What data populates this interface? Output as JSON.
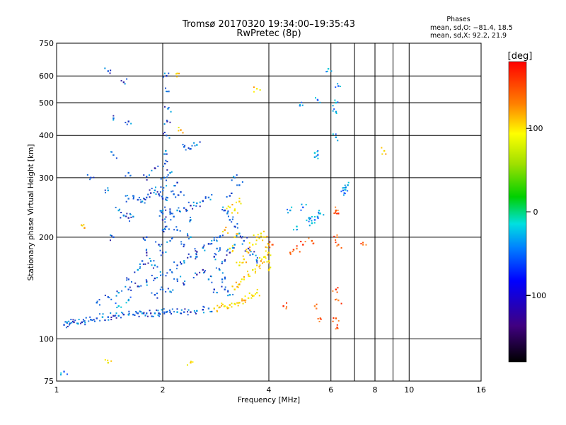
{
  "chart_data": {
    "type": "scatter",
    "title": "Tromsø 20170320 19:34:00–19:35:43",
    "subtitle": "RwPretec (8p)",
    "xlabel": "Frequency [MHz]",
    "ylabel": "Stationary phase Virtual Height [km]",
    "xscale": "log",
    "yscale": "log",
    "xlim": [
      1,
      16
    ],
    "ylim": [
      75,
      750
    ],
    "x_ticks": [
      1,
      2,
      4,
      6,
      8,
      10,
      16
    ],
    "x_grid": [
      1,
      2,
      4,
      6,
      7,
      8,
      9,
      10,
      16
    ],
    "y_ticks": [
      75,
      100,
      200,
      300,
      400,
      500,
      600,
      750
    ],
    "grid": true,
    "stats": {
      "heading": "Phases",
      "line_o": "mean, sd,O: −81.4, 18.5",
      "line_x": "mean, sd,X:  92.2, 21.9"
    },
    "colorbar": {
      "label": "[deg]",
      "range": [
        -180,
        180
      ],
      "ticks": [
        -100,
        0,
        100
      ],
      "placement": "right"
    },
    "series": [
      {
        "points": [
          [
            1.05,
            110
          ],
          [
            1.07,
            112
          ],
          [
            1.09,
            111
          ],
          [
            1.12,
            112
          ],
          [
            1.15,
            111
          ],
          [
            1.18,
            112
          ],
          [
            1.2,
            113
          ],
          [
            1.25,
            114
          ],
          [
            1.3,
            115
          ],
          [
            1.35,
            116
          ],
          [
            1.4,
            116
          ],
          [
            1.45,
            117
          ],
          [
            1.5,
            117
          ],
          [
            1.55,
            118
          ],
          [
            1.6,
            118
          ],
          [
            1.65,
            118
          ],
          [
            1.7,
            119
          ],
          [
            1.75,
            119
          ],
          [
            1.8,
            119
          ],
          [
            1.85,
            119
          ],
          [
            1.9,
            119
          ],
          [
            1.95,
            119
          ],
          [
            2.0,
            120
          ],
          [
            2.05,
            120
          ],
          [
            2.1,
            120
          ],
          [
            2.2,
            120
          ],
          [
            2.3,
            120
          ],
          [
            2.4,
            120
          ],
          [
            2.5,
            121
          ],
          [
            2.6,
            122
          ],
          [
            2.7,
            123
          ],
          [
            1.3,
            128
          ],
          [
            1.4,
            133
          ],
          [
            1.5,
            137
          ],
          [
            1.6,
            140
          ],
          [
            1.7,
            143
          ],
          [
            1.8,
            147
          ],
          [
            1.9,
            151
          ],
          [
            2.0,
            155
          ],
          [
            2.1,
            160
          ],
          [
            2.2,
            165
          ],
          [
            2.3,
            170
          ],
          [
            2.4,
            175
          ],
          [
            2.5,
            181
          ],
          [
            2.6,
            186
          ],
          [
            2.7,
            191
          ],
          [
            2.8,
            196
          ],
          [
            2.9,
            200
          ],
          [
            1.6,
            150
          ],
          [
            1.7,
            160
          ],
          [
            1.75,
            170
          ],
          [
            1.8,
            180
          ],
          [
            1.9,
            165
          ],
          [
            2.0,
            180
          ],
          [
            2.1,
            195
          ],
          [
            2.2,
            210
          ],
          [
            2.3,
            190
          ],
          [
            2.4,
            200
          ],
          [
            2.5,
            175
          ],
          [
            2.6,
            160
          ],
          [
            2.7,
            150
          ],
          [
            2.8,
            140
          ],
          [
            2.2,
            150
          ],
          [
            2.0,
            140
          ],
          [
            1.9,
            135
          ],
          [
            2.1,
            138
          ],
          [
            2.3,
            145
          ],
          [
            2.5,
            155
          ],
          [
            1.85,
            170
          ],
          [
            1.95,
            190
          ],
          [
            2.05,
            215
          ],
          [
            2.15,
            230
          ],
          [
            1.8,
            200
          ],
          [
            2.4,
            225
          ],
          [
            2.0,
            210
          ],
          [
            2.0,
            225
          ],
          [
            2.0,
            240
          ],
          [
            2.0,
            260
          ],
          [
            2.01,
            280
          ],
          [
            2.02,
            300
          ],
          [
            2.03,
            330
          ],
          [
            2.04,
            360
          ],
          [
            2.05,
            400
          ],
          [
            2.06,
            440
          ],
          [
            2.07,
            480
          ],
          [
            2.05,
            600
          ],
          [
            2.08,
            540
          ],
          [
            2.0,
            235
          ],
          [
            2.1,
            237
          ],
          [
            2.2,
            240
          ],
          [
            2.3,
            244
          ],
          [
            2.4,
            248
          ],
          [
            2.5,
            252
          ],
          [
            2.6,
            256
          ],
          [
            2.7,
            262
          ],
          [
            2.3,
            370
          ],
          [
            2.4,
            365
          ],
          [
            2.5,
            375
          ],
          [
            1.8,
            302
          ],
          [
            1.9,
            320
          ],
          [
            2.1,
            310
          ],
          [
            2.2,
            290
          ],
          [
            1.6,
            260
          ],
          [
            1.65,
            265
          ],
          [
            1.7,
            258
          ],
          [
            1.75,
            255
          ],
          [
            1.8,
            262
          ],
          [
            1.85,
            270
          ],
          [
            1.9,
            275
          ],
          [
            1.95,
            268
          ],
          [
            2.05,
            262
          ],
          [
            2.15,
            268
          ],
          [
            2.25,
            272
          ],
          [
            1.5,
            240
          ],
          [
            1.55,
            232
          ],
          [
            1.6,
            228
          ],
          [
            1.65,
            230
          ],
          [
            3.0,
            240
          ],
          [
            3.05,
            235
          ],
          [
            3.1,
            225
          ],
          [
            3.2,
            215
          ],
          [
            3.3,
            205
          ],
          [
            3.4,
            195
          ],
          [
            3.5,
            185
          ],
          [
            3.6,
            178
          ],
          [
            3.7,
            170
          ],
          [
            3.2,
            300
          ],
          [
            3.3,
            285
          ],
          [
            3.1,
            265
          ],
          [
            2.9,
            160
          ],
          [
            3.0,
            170
          ],
          [
            3.1,
            180
          ],
          [
            3.2,
            190
          ],
          [
            2.8,
            175
          ],
          [
            2.85,
            185
          ],
          [
            2.95,
            150
          ],
          [
            3.0,
            140
          ],
          [
            3.1,
            135
          ],
          [
            1.4,
            620
          ],
          [
            1.55,
            575
          ],
          [
            1.45,
            450
          ],
          [
            1.6,
            440
          ],
          [
            1.45,
            350
          ],
          [
            1.6,
            310
          ],
          [
            1.25,
            300
          ],
          [
            1.4,
            275
          ],
          [
            1.45,
            200
          ]
        ]
      },
      {
        "points": [
          [
            2.8,
            123
          ],
          [
            2.9,
            124
          ],
          [
            3.0,
            125
          ],
          [
            3.1,
            126
          ],
          [
            3.2,
            127
          ],
          [
            3.3,
            128
          ],
          [
            3.4,
            130
          ],
          [
            3.5,
            132
          ],
          [
            3.6,
            134
          ],
          [
            3.7,
            137
          ],
          [
            3.2,
            140
          ],
          [
            3.3,
            145
          ],
          [
            3.4,
            150
          ],
          [
            3.5,
            155
          ],
          [
            3.6,
            160
          ],
          [
            3.7,
            165
          ],
          [
            3.8,
            170
          ],
          [
            3.9,
            175
          ],
          [
            4.0,
            180
          ],
          [
            3.3,
            165
          ],
          [
            3.4,
            172
          ],
          [
            3.5,
            180
          ],
          [
            3.6,
            190
          ],
          [
            3.7,
            200
          ],
          [
            3.8,
            205
          ],
          [
            3.9,
            200
          ],
          [
            4.0,
            190
          ],
          [
            4.0,
            170
          ],
          [
            4.0,
            160
          ],
          [
            3.1,
            185
          ],
          [
            3.2,
            200
          ],
          [
            3.0,
            210
          ],
          [
            3.1,
            245
          ],
          [
            3.3,
            255
          ],
          [
            3.2,
            240
          ],
          [
            2.2,
            610
          ],
          [
            2.25,
            415
          ],
          [
            3.7,
            550
          ],
          [
            2.4,
            85
          ],
          [
            1.4,
            85
          ],
          [
            8.5,
            360
          ],
          [
            1.2,
            213
          ]
        ]
      },
      {
        "points": [
          [
            6.5,
            275
          ],
          [
            6.6,
            280
          ],
          [
            6.7,
            285
          ],
          [
            6.55,
            270
          ],
          [
            5.6,
            235
          ],
          [
            5.5,
            230
          ],
          [
            5.4,
            225
          ],
          [
            5.3,
            220
          ],
          [
            5.2,
            228
          ],
          [
            5.0,
            245
          ],
          [
            4.8,
            215
          ],
          [
            4.6,
            240
          ],
          [
            5.5,
            510
          ],
          [
            5.4,
            355
          ],
          [
            5.4,
            345
          ],
          [
            4.9,
            490
          ],
          [
            6.2,
            500
          ],
          [
            6.2,
            470
          ],
          [
            6.3,
            560
          ],
          [
            5.9,
            630
          ],
          [
            6.2,
            395
          ],
          [
            1.05,
            80
          ],
          [
            1.5,
            125
          ],
          [
            1.6,
            130
          ]
        ]
      },
      {
        "points": [
          [
            6.2,
            240
          ],
          [
            6.3,
            235
          ],
          [
            6.25,
            200
          ],
          [
            6.3,
            190
          ],
          [
            6.2,
            140
          ],
          [
            6.3,
            130
          ],
          [
            6.2,
            115
          ],
          [
            6.25,
            108
          ],
          [
            7.4,
            190
          ],
          [
            5.3,
            195
          ],
          [
            5.0,
            190
          ],
          [
            4.8,
            185
          ],
          [
            4.6,
            180
          ],
          [
            4.4,
            125
          ],
          [
            5.4,
            125
          ],
          [
            5.6,
            115
          ],
          [
            4.1,
            190
          ]
        ]
      }
    ]
  }
}
